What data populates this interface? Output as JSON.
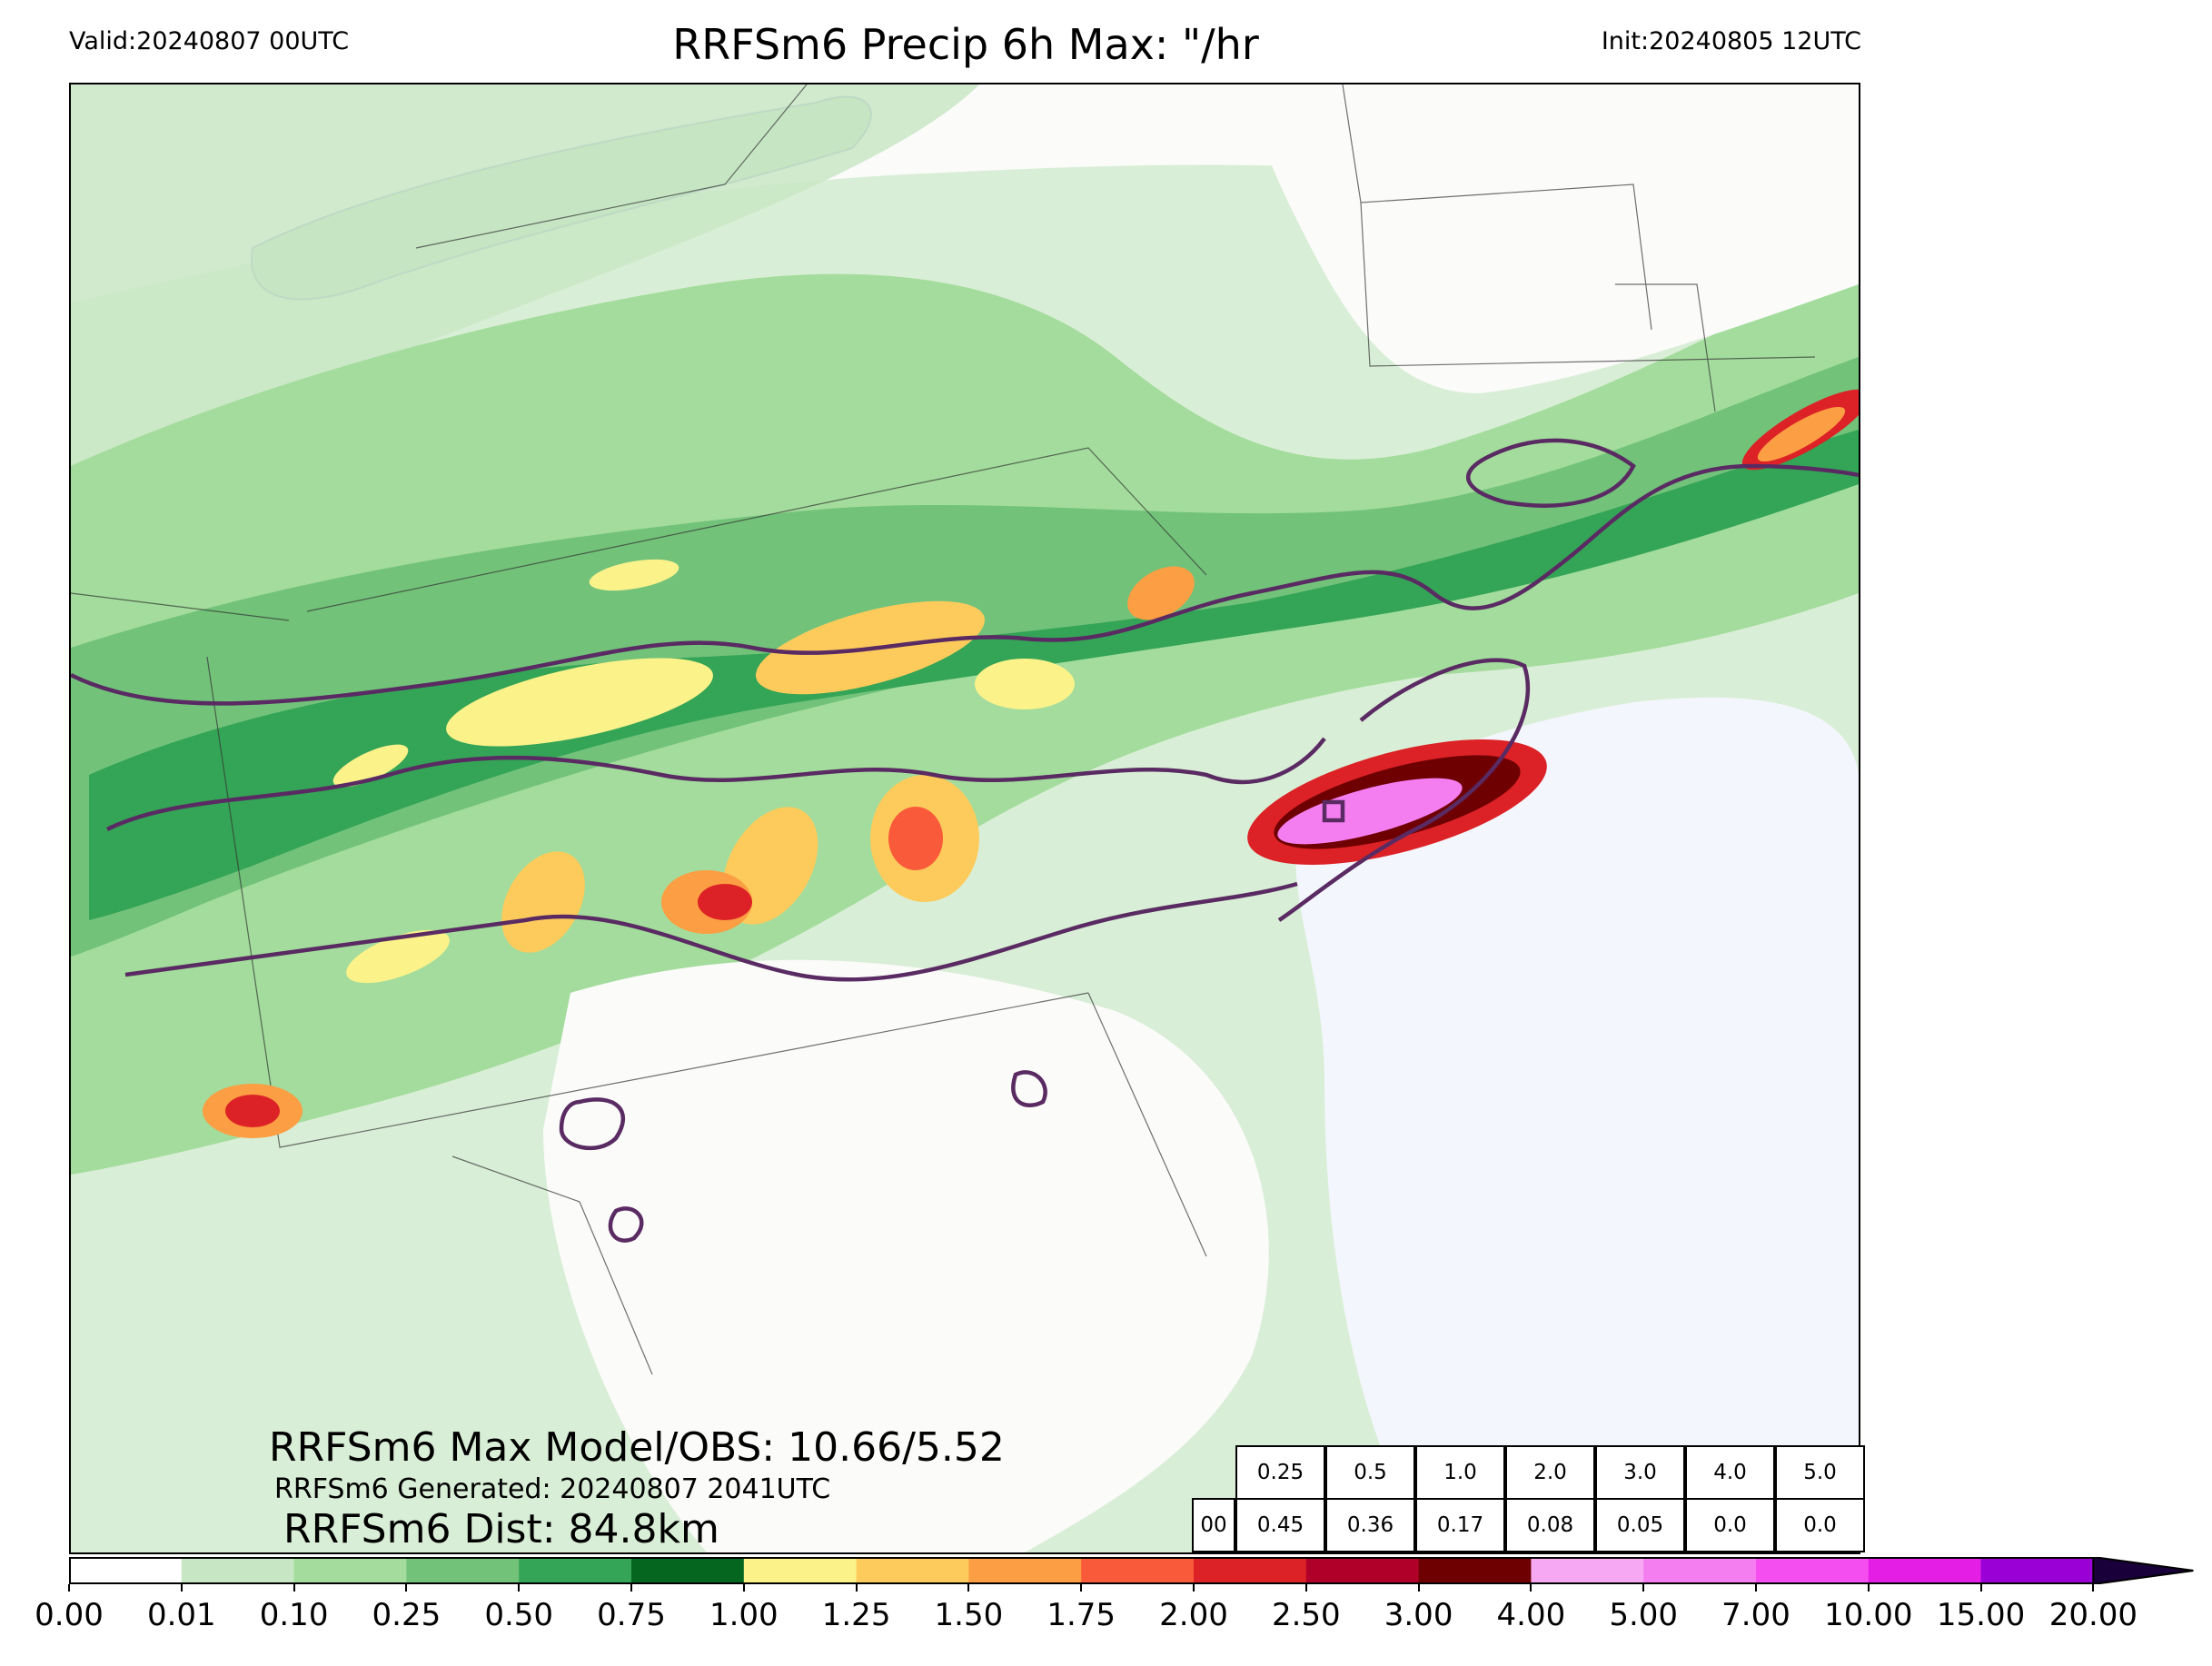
{
  "header": {
    "valid": "Valid:20240807 00UTC",
    "title": "RRFSm6 Precip 6h Max: \"/hr",
    "init": "Init:20240805 12UTC"
  },
  "annotations": {
    "max": "RRFSm6 Max Model/OBS: 10.66/5.52",
    "generated": "RRFSm6 Generated: 20240807 2041UTC",
    "distance": "RRFSm6 Dist: 84.8km"
  },
  "stats_table": {
    "thresholds": [
      "0.25",
      "0.5",
      "1.0",
      "2.0",
      "3.0",
      "4.0",
      "5.0"
    ],
    "row_label": "00",
    "values": [
      "0.45",
      "0.36",
      "0.17",
      "0.08",
      "0.05",
      "0.0",
      "0.0"
    ]
  },
  "colorbar": {
    "levels": [
      "0.00",
      "0.01",
      "0.10",
      "0.25",
      "0.50",
      "0.75",
      "1.00",
      "1.25",
      "1.50",
      "1.75",
      "2.00",
      "2.50",
      "3.00",
      "4.00",
      "5.00",
      "7.00",
      "10.00",
      "15.00",
      "20.00"
    ],
    "colors": [
      "#ffffff",
      "#c7e6c3",
      "#a3dc9c",
      "#72c27a",
      "#34a456",
      "#05661f",
      "#fbf28a",
      "#fdcb5c",
      "#fc9e43",
      "#f95a39",
      "#dc2226",
      "#b00029",
      "#6f0002",
      "#f7a8f2",
      "#f47ef0",
      "#f54ef0",
      "#e51ee5",
      "#9a00d6"
    ],
    "extend": "max"
  },
  "colors": {
    "outline": "#5a2b63",
    "borders": "#333333",
    "water": "#f3f6fc"
  }
}
